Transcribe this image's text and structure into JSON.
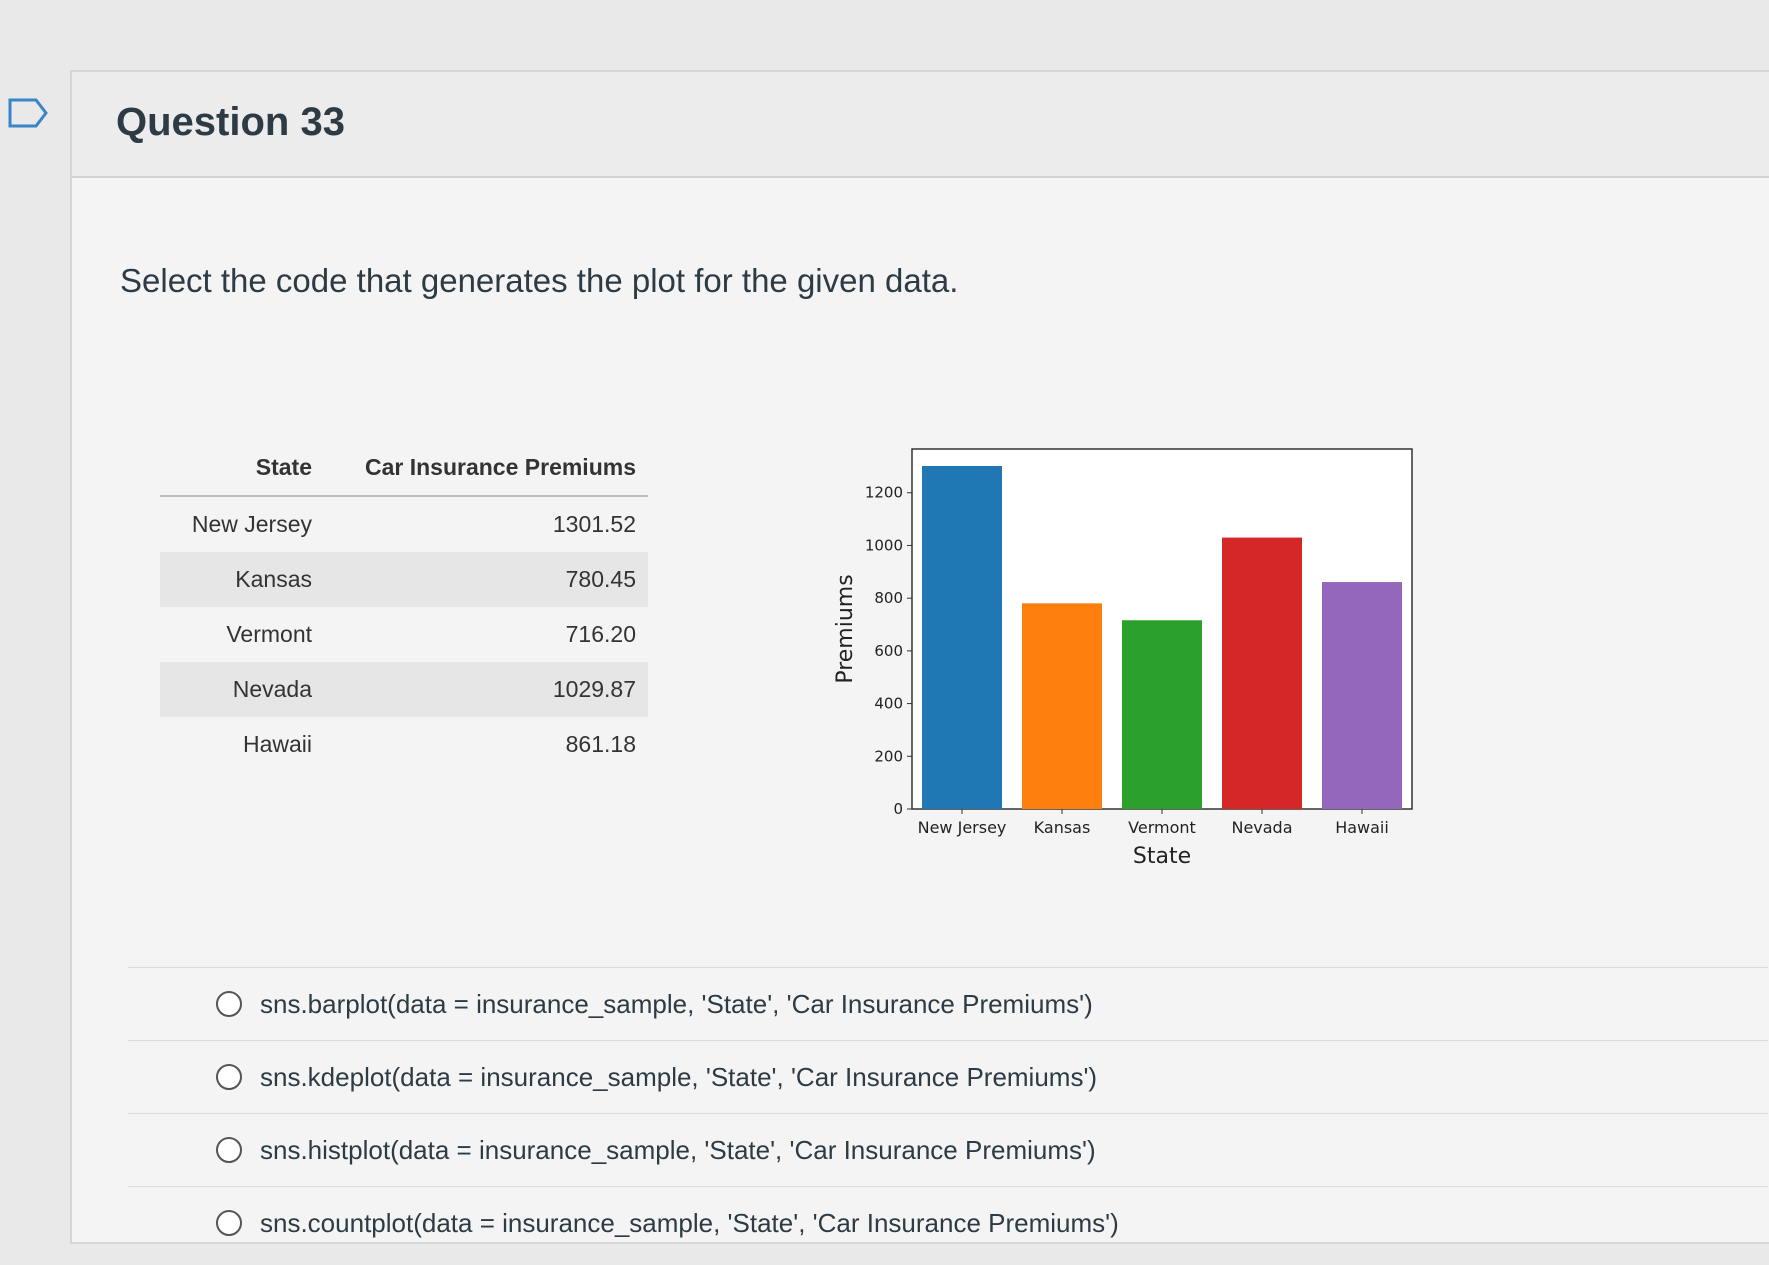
{
  "question": {
    "title": "Question 33",
    "prompt": "Select the code that generates the plot for the given data."
  },
  "table": {
    "headers": [
      "State",
      "Car Insurance Premiums"
    ],
    "rows": [
      {
        "state": "New Jersey",
        "premium": "1301.52"
      },
      {
        "state": "Kansas",
        "premium": "780.45"
      },
      {
        "state": "Vermont",
        "premium": "716.20"
      },
      {
        "state": "Nevada",
        "premium": "1029.87"
      },
      {
        "state": "Hawaii",
        "premium": "861.18"
      }
    ]
  },
  "chart_data": {
    "type": "bar",
    "categories": [
      "New Jersey",
      "Kansas",
      "Vermont",
      "Nevada",
      "Hawaii"
    ],
    "values": [
      1301.52,
      780.45,
      716.2,
      1029.87,
      861.18
    ],
    "colors": [
      "#1f77b4",
      "#ff7f0e",
      "#2ca02c",
      "#d62728",
      "#9467bd"
    ],
    "xlabel": "State",
    "ylabel": "Premiums",
    "ylim": [
      0,
      1366
    ],
    "yticks": [
      0,
      200,
      400,
      600,
      800,
      1000,
      1200
    ],
    "grid": false
  },
  "options": [
    "sns.barplot(data = insurance_sample, 'State', 'Car Insurance Premiums')",
    "sns.kdeplot(data = insurance_sample, 'State', 'Car Insurance Premiums')",
    "sns.histplot(data = insurance_sample, 'State', 'Car Insurance Premiums')",
    "sns.countplot(data = insurance_sample, 'State', 'Car Insurance Premiums')"
  ]
}
